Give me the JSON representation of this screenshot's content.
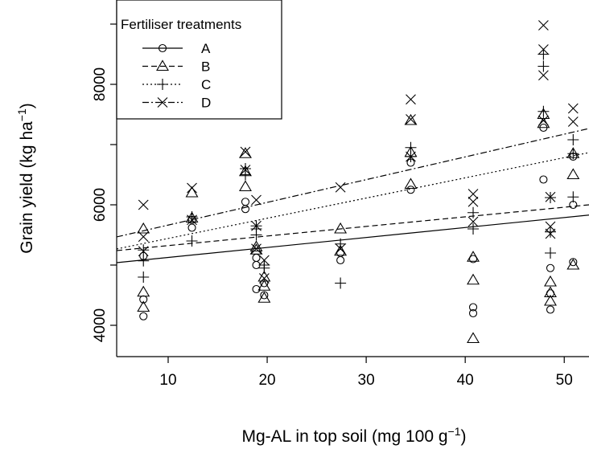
{
  "chart_data": {
    "type": "scatter",
    "xlabel": {
      "text": "Mg-AL in top soil (mg 100 g",
      "sup": "−1",
      "end": ")"
    },
    "ylabel": {
      "text": "Grain yield (kg ha",
      "sup": "−1",
      "end": ")"
    },
    "xlim": [
      4.8,
      52.5
    ],
    "ylim": [
      3480,
      9400
    ],
    "xticks": [
      10,
      20,
      30,
      40,
      50
    ],
    "yticks": [
      4000,
      6000,
      8000
    ],
    "yminor": [
      5000,
      7000,
      9000
    ],
    "legend": {
      "title": "Fertiliser treatments",
      "corner": "top-left"
    },
    "series": [
      {
        "name": "A",
        "marker": "circle",
        "linestyle": "solid",
        "color": "#000000",
        "x": [
          7.5,
          7.5,
          7.5,
          12.4,
          12.4,
          17.8,
          17.8,
          18.9,
          18.9,
          18.9,
          19.7,
          19.7,
          27.4,
          27.4,
          34.5,
          34.5,
          40.8,
          40.8,
          40.8,
          47.9,
          47.9,
          48.6,
          48.6,
          48.6,
          50.9,
          50.9,
          50.9
        ],
        "values": [
          5150,
          4430,
          4150,
          5620,
          5750,
          6050,
          5930,
          5000,
          5120,
          4600,
          4700,
          4500,
          5200,
          5080,
          6700,
          6250,
          5100,
          4300,
          4200,
          6420,
          7280,
          4950,
          4530,
          4260,
          6000,
          5050,
          6800
        ],
        "fit_x": [
          4.8,
          52.5
        ],
        "fit_values": [
          5040,
          5830
        ]
      },
      {
        "name": "B",
        "marker": "triangle",
        "linestyle": "dashed",
        "color": "#000000",
        "x": [
          7.5,
          7.5,
          7.5,
          12.4,
          12.4,
          17.8,
          17.8,
          17.8,
          18.9,
          18.9,
          19.7,
          19.7,
          19.7,
          27.4,
          27.4,
          34.5,
          34.5,
          34.5,
          40.8,
          40.8,
          40.8,
          47.9,
          47.9,
          48.6,
          48.6,
          48.6,
          50.9,
          50.9,
          50.9
        ],
        "values": [
          5600,
          4550,
          4300,
          6200,
          5780,
          6550,
          6300,
          6850,
          5250,
          5300,
          4800,
          4450,
          4650,
          5600,
          5230,
          7400,
          6340,
          6870,
          5130,
          4750,
          3780,
          7350,
          7500,
          4720,
          4540,
          4400,
          6500,
          6850,
          5000
        ],
        "fit_x": [
          4.8,
          52.5
        ],
        "fit_values": [
          5240,
          6000
        ]
      },
      {
        "name": "C",
        "marker": "plus",
        "linestyle": "dotted",
        "color": "#000000",
        "x": [
          7.5,
          7.5,
          7.5,
          12.4,
          12.4,
          17.8,
          17.8,
          18.9,
          18.9,
          18.9,
          19.7,
          19.7,
          27.4,
          27.4,
          34.5,
          34.5,
          40.8,
          40.8,
          47.9,
          47.9,
          47.9,
          48.6,
          48.6,
          48.6,
          50.9,
          50.9,
          50.9
        ],
        "values": [
          5250,
          5070,
          4800,
          5400,
          5800,
          6600,
          6500,
          5650,
          5500,
          5600,
          5000,
          4950,
          5350,
          4700,
          6800,
          6950,
          5600,
          5870,
          8300,
          8500,
          7550,
          6120,
          5550,
          5200,
          7080,
          6130,
          6850
        ],
        "fit_x": [
          4.8,
          52.5
        ],
        "fit_values": [
          5267,
          6867
        ]
      },
      {
        "name": "D",
        "marker": "cross",
        "linestyle": "dashdot",
        "color": "#000000",
        "x": [
          7.5,
          7.5,
          7.5,
          12.4,
          12.4,
          17.8,
          17.8,
          18.9,
          18.9,
          18.9,
          19.7,
          19.7,
          27.4,
          27.4,
          34.5,
          34.5,
          34.5,
          40.8,
          40.8,
          40.8,
          47.9,
          47.9,
          47.9,
          47.9,
          48.6,
          48.6,
          48.6,
          50.9,
          50.9
        ],
        "values": [
          6000,
          5470,
          5230,
          6280,
          5750,
          6880,
          6580,
          6080,
          5650,
          5270,
          5080,
          4780,
          6290,
          5270,
          7750,
          7420,
          6800,
          6180,
          6050,
          5720,
          8980,
          8580,
          8150,
          7400,
          6130,
          5640,
          5520,
          7600,
          7380
        ],
        "fit_x": [
          4.8,
          52.5
        ],
        "fit_values": [
          5467,
          7267
        ]
      }
    ]
  }
}
